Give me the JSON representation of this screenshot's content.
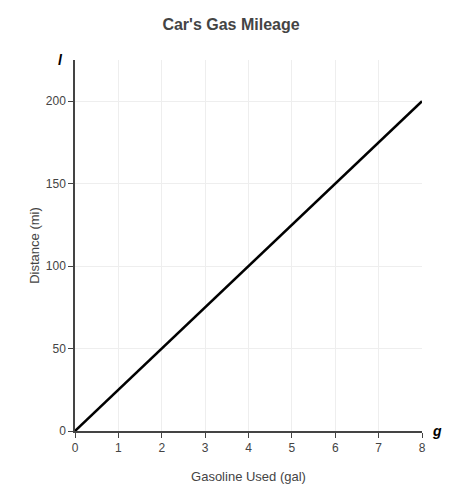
{
  "chart_data": {
    "type": "line",
    "title": "Car's Gas Mileage",
    "xlabel": "Gasoline Used (gal)",
    "ylabel": "Distance (mi)",
    "annotations": [
      "g",
      "l"
    ],
    "x": [
      0,
      8
    ],
    "series": [
      {
        "color": "#000000",
        "values": [
          0,
          200
        ]
      }
    ],
    "xlim": [
      0,
      8
    ],
    "ylim": [
      0,
      225
    ],
    "xticks": [
      0,
      1,
      2,
      3,
      4,
      5,
      6,
      7,
      8
    ],
    "yticks": [
      0,
      50,
      100,
      150,
      200
    ],
    "grid": true
  }
}
